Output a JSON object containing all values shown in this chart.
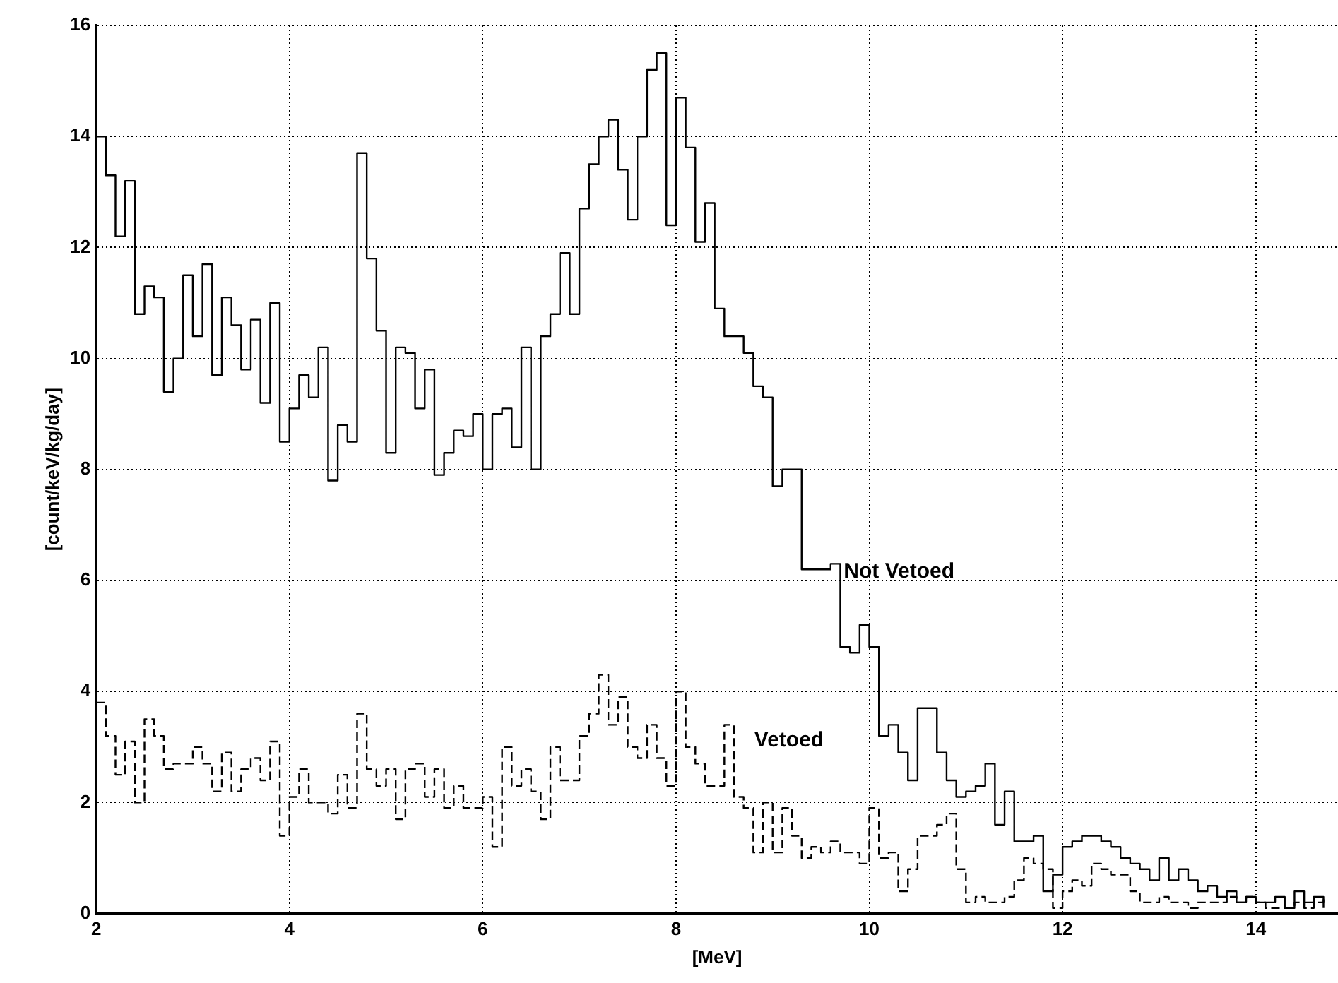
{
  "chart_data": {
    "type": "step",
    "xlabel": "[MeV]",
    "ylabel": "[count/keV/kg/day]",
    "x": [
      2.0,
      2.1,
      2.2,
      2.3,
      2.4,
      2.5,
      2.6,
      2.7,
      2.8,
      2.9,
      3.0,
      3.1,
      3.2,
      3.3,
      3.4,
      3.5,
      3.6,
      3.7,
      3.8,
      3.9,
      4.0,
      4.1,
      4.2,
      4.3,
      4.4,
      4.5,
      4.6,
      4.7,
      4.8,
      4.9,
      5.0,
      5.1,
      5.2,
      5.3,
      5.4,
      5.5,
      5.6,
      5.7,
      5.8,
      5.9,
      6.0,
      6.1,
      6.2,
      6.3,
      6.4,
      6.5,
      6.6,
      6.7,
      6.8,
      6.9,
      7.0,
      7.1,
      7.2,
      7.3,
      7.4,
      7.5,
      7.6,
      7.7,
      7.8,
      7.9,
      8.0,
      8.1,
      8.2,
      8.3,
      8.4,
      8.5,
      8.6,
      8.7,
      8.8,
      8.9,
      9.0,
      9.1,
      9.2,
      9.3,
      9.4,
      9.5,
      9.6,
      9.7,
      9.8,
      9.9,
      10.0,
      10.1,
      10.2,
      10.3,
      10.4,
      10.5,
      10.6,
      10.7,
      10.8,
      10.9,
      11.0,
      11.1,
      11.2,
      11.3,
      11.4,
      11.5,
      11.6,
      11.7,
      11.8,
      11.9,
      12.0,
      12.1,
      12.2,
      12.3,
      12.4,
      12.5,
      12.6,
      12.7,
      12.8,
      12.9,
      13.0,
      13.1,
      13.2,
      13.3,
      13.4,
      13.5,
      13.6,
      13.7,
      13.8,
      13.9,
      14.0,
      14.1,
      14.2,
      14.3,
      14.4,
      14.5,
      14.6,
      14.7
    ],
    "series": [
      {
        "name": "Not Vetoed",
        "color": "#000000",
        "line_style": "solid",
        "values": [
          14.0,
          13.3,
          12.2,
          13.2,
          10.8,
          11.3,
          11.1,
          9.4,
          10.0,
          11.5,
          10.4,
          11.7,
          9.7,
          11.1,
          10.6,
          9.8,
          10.7,
          9.2,
          11.0,
          8.5,
          9.1,
          9.7,
          9.3,
          10.2,
          7.8,
          8.8,
          8.5,
          13.7,
          11.8,
          10.5,
          8.3,
          10.2,
          10.1,
          9.1,
          9.8,
          7.9,
          8.3,
          8.7,
          8.6,
          9.0,
          8.0,
          9.0,
          9.1,
          8.4,
          10.2,
          8.0,
          10.4,
          10.8,
          11.9,
          10.8,
          12.7,
          13.5,
          14.0,
          14.3,
          13.4,
          12.5,
          14.0,
          15.2,
          15.5,
          12.4,
          14.7,
          13.8,
          12.1,
          12.8,
          10.9,
          10.4,
          10.4,
          10.1,
          9.5,
          9.3,
          7.7,
          8.0,
          8.0,
          6.2,
          6.2,
          6.2,
          6.3,
          4.8,
          4.7,
          5.2,
          4.8,
          3.2,
          3.4,
          2.9,
          2.4,
          3.7,
          3.7,
          2.9,
          2.4,
          2.1,
          2.2,
          2.3,
          2.7,
          1.6,
          2.2,
          1.3,
          1.3,
          1.4,
          0.4,
          0.7,
          1.2,
          1.3,
          1.4,
          1.4,
          1.3,
          1.2,
          1.0,
          0.9,
          0.8,
          0.6,
          1.0,
          0.6,
          0.8,
          0.6,
          0.4,
          0.5,
          0.3,
          0.4,
          0.2,
          0.3,
          0.2,
          0.2,
          0.3,
          0.1,
          0.4,
          0.2,
          0.3,
          0.1
        ]
      },
      {
        "name": "Vetoed",
        "color": "#000000",
        "line_style": "dashed",
        "values": [
          3.8,
          3.2,
          2.5,
          3.1,
          2.0,
          3.5,
          3.2,
          2.6,
          2.7,
          2.7,
          3.0,
          2.7,
          2.2,
          2.9,
          2.2,
          2.6,
          2.8,
          2.4,
          3.1,
          1.4,
          2.1,
          2.6,
          2.0,
          2.0,
          1.8,
          2.5,
          1.9,
          3.6,
          2.6,
          2.3,
          2.6,
          1.7,
          2.6,
          2.7,
          2.1,
          2.6,
          1.9,
          2.3,
          1.9,
          1.9,
          2.1,
          1.2,
          3.0,
          2.3,
          2.6,
          2.2,
          1.7,
          3.0,
          2.4,
          2.4,
          3.2,
          3.6,
          4.3,
          3.4,
          3.9,
          3.0,
          2.8,
          3.4,
          2.8,
          2.3,
          4.0,
          3.0,
          2.7,
          2.3,
          2.3,
          3.4,
          2.1,
          1.9,
          1.1,
          2.0,
          1.1,
          1.9,
          1.4,
          1.0,
          1.2,
          1.1,
          1.3,
          1.1,
          1.1,
          0.9,
          1.9,
          1.0,
          1.1,
          0.4,
          0.8,
          1.4,
          1.4,
          1.6,
          1.8,
          0.8,
          0.2,
          0.3,
          0.2,
          0.2,
          0.3,
          0.6,
          1.0,
          0.9,
          0.8,
          0.1,
          0.4,
          0.6,
          0.5,
          0.9,
          0.8,
          0.7,
          0.7,
          0.4,
          0.2,
          0.2,
          0.3,
          0.2,
          0.2,
          0.1,
          0.2,
          0.2,
          0.2,
          0.3,
          0.2,
          0.3,
          0.2,
          0.1,
          0.1,
          0.1,
          0.2,
          0.1,
          0.2,
          0.3
        ]
      }
    ],
    "xlim": [
      2,
      14.85
    ],
    "xticks": [
      2,
      4,
      6,
      8,
      10,
      12,
      14
    ],
    "ylim": [
      0,
      16
    ],
    "yticks": [
      0,
      2,
      4,
      6,
      8,
      10,
      12,
      14,
      16
    ],
    "grid": true,
    "legend": false
  }
}
